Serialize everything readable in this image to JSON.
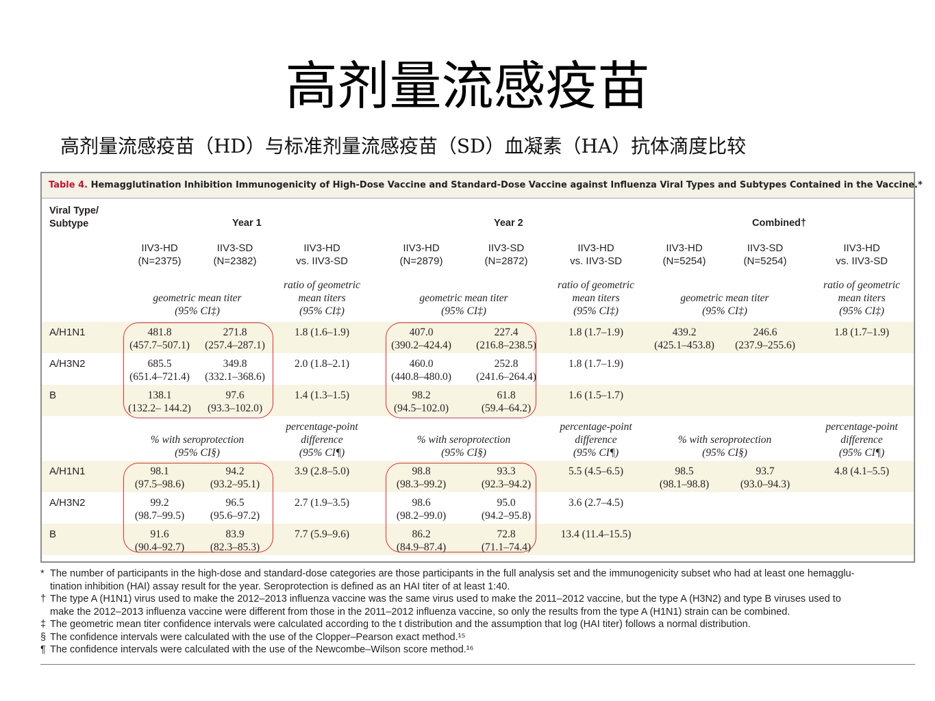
{
  "slide": {
    "title": "高剂量流感疫苗",
    "subtitle": "高剂量流感疫苗（HD）与标准剂量流感疫苗（SD）血凝素（HA）抗体滴度比较"
  },
  "table": {
    "caption_label": "Table 4.",
    "caption_text": " Hemagglutination Inhibition Immunogenicity of High-Dose Vaccine and Standard-Dose Vaccine against Influenza Viral Types and Subtypes Contained in the Vaccine.*",
    "row_header_1": "Viral Type/",
    "row_header_2": "Subtype",
    "periods": [
      "Year 1",
      "Year 2",
      "Combined†"
    ],
    "groups": [
      {
        "hd": "IIV3-HD",
        "hd_n": "(N=2375)",
        "sd": "IIV3-SD",
        "sd_n": "(N=2382)",
        "cmp1": "IIV3-HD",
        "cmp2": "vs. IIV3-SD"
      },
      {
        "hd": "IIV3-HD",
        "hd_n": "(N=2879)",
        "sd": "IIV3-SD",
        "sd_n": "(N=2872)",
        "cmp1": "IIV3-HD",
        "cmp2": "vs. IIV3-SD"
      },
      {
        "hd": "IIV3-HD",
        "hd_n": "(N=5254)",
        "sd": "IIV3-SD",
        "sd_n": "(N=5254)",
        "cmp1": "IIV3-HD",
        "cmp2": "vs. IIV3-SD"
      }
    ],
    "gmt_header": {
      "measure": "geometric mean titer",
      "ci": "(95% CI‡)",
      "ratio_1": "ratio of geometric",
      "ratio_2": "mean titers",
      "ratio_ci": "(95% CI‡)"
    },
    "sero_header": {
      "measure": "% with seroprotection",
      "ci": "(95% CI§)",
      "diff_1": "percentage-point",
      "diff_2": "difference",
      "diff_ci": "(95% CI¶)"
    },
    "gmt_rows": [
      {
        "label": "A/H1N1",
        "y1": {
          "hd": "481.8",
          "hd_ci": "(457.7–507.1)",
          "sd": "271.8",
          "sd_ci": "(257.4–287.1)",
          "ratio": "1.8 (1.6–1.9)"
        },
        "y2": {
          "hd": "407.0",
          "hd_ci": "(390.2–424.4)",
          "sd": "227.4",
          "sd_ci": "(216.8–238.5)",
          "ratio": "1.8 (1.7–1.9)"
        },
        "comb": {
          "hd": "439.2",
          "hd_ci": "(425.1–453.8)",
          "sd": "246.6",
          "sd_ci": "(237.9–255.6)",
          "ratio": "1.8 (1.7–1.9)"
        }
      },
      {
        "label": "A/H3N2",
        "y1": {
          "hd": "685.5",
          "hd_ci": "(651.4–721.4)",
          "sd": "349.8",
          "sd_ci": "(332.1–368.6)",
          "ratio": "2.0 (1.8–2.1)"
        },
        "y2": {
          "hd": "460.0",
          "hd_ci": "(440.8–480.0)",
          "sd": "252.8",
          "sd_ci": "(241.6–264.4)",
          "ratio": "1.8 (1.7–1.9)"
        },
        "comb": {
          "hd": "",
          "hd_ci": "",
          "sd": "",
          "sd_ci": "",
          "ratio": ""
        }
      },
      {
        "label": "B",
        "y1": {
          "hd": "138.1",
          "hd_ci": "(132.2– 144.2)",
          "sd": "97.6",
          "sd_ci": "(93.3–102.0)",
          "ratio": "1.4 (1.3–1.5)"
        },
        "y2": {
          "hd": "98.2",
          "hd_ci": "(94.5–102.0)",
          "sd": "61.8",
          "sd_ci": "(59.4–64.2)",
          "ratio": "1.6 (1.5–1.7)"
        },
        "comb": {
          "hd": "",
          "hd_ci": "",
          "sd": "",
          "sd_ci": "",
          "ratio": ""
        }
      }
    ],
    "sero_rows": [
      {
        "label": "A/H1N1",
        "y1": {
          "hd": "98.1",
          "hd_ci": "(97.5–98.6)",
          "sd": "94.2",
          "sd_ci": "(93.2–95.1)",
          "ratio": "3.9 (2.8–5.0)"
        },
        "y2": {
          "hd": "98.8",
          "hd_ci": "(98.3–99.2)",
          "sd": "93.3",
          "sd_ci": "(92.3–94.2)",
          "ratio": "5.5 (4.5–6.5)"
        },
        "comb": {
          "hd": "98.5",
          "hd_ci": "(98.1–98.8)",
          "sd": "93.7",
          "sd_ci": "(93.0–94.3)",
          "ratio": "4.8 (4.1–5.5)"
        }
      },
      {
        "label": "A/H3N2",
        "y1": {
          "hd": "99.2",
          "hd_ci": "(98.7–99.5)",
          "sd": "96.5",
          "sd_ci": "(95.6–97.2)",
          "ratio": "2.7 (1.9–3.5)"
        },
        "y2": {
          "hd": "98.6",
          "hd_ci": "(98.2–99.0)",
          "sd": "95.0",
          "sd_ci": "(94.2–95.8)",
          "ratio": "3.6 (2.7–4.5)"
        },
        "comb": {
          "hd": "",
          "hd_ci": "",
          "sd": "",
          "sd_ci": "",
          "ratio": ""
        }
      },
      {
        "label": "B",
        "y1": {
          "hd": "91.6",
          "hd_ci": "(90.4–92.7)",
          "sd": "83.9",
          "sd_ci": "(82.3–85.3)",
          "ratio": "7.7 (5.9–9.6)"
        },
        "y2": {
          "hd": "86.2",
          "hd_ci": "(84.9–87.4)",
          "sd": "72.8",
          "sd_ci": "(71.1–74.4)",
          "ratio": "13.4 (11.4–15.5)"
        },
        "comb": {
          "hd": "",
          "hd_ci": "",
          "sd": "",
          "sd_ci": "",
          "ratio": ""
        }
      }
    ]
  },
  "footnotes": [
    {
      "marker": "*",
      "lines": [
        "The number of participants in the high-dose and standard-dose categories are those participants in the full analysis set and the immunogenicity subset who had at least one hemagglu-",
        "tination inhibition (HAI) assay result for the year. Seroprotection is defined as an HAI titer of at least 1:40."
      ]
    },
    {
      "marker": "†",
      "lines": [
        "The type A (H1N1) virus used to make the 2012–2013 influenza vaccine was the same virus used to make the 2011–2012 vaccine, but the type A (H3N2) and type B viruses used to",
        "make the 2012–2013 influenza vaccine were different from those in the 2011–2012 influenza vaccine, so only the results from the type A (H1N1) strain can be combined."
      ]
    },
    {
      "marker": "‡",
      "lines": [
        "The geometric mean titer confidence intervals were calculated according to the t distribution and the assumption that log (HAI titer) follows a normal distribution."
      ]
    },
    {
      "marker": "§",
      "lines": [
        "The confidence intervals were calculated with the use of the Clopper–Pearson exact method.¹⁵"
      ]
    },
    {
      "marker": "¶",
      "lines": [
        "The confidence intervals were calculated with the use of the Newcombe–Wilson score method.¹⁶"
      ]
    }
  ],
  "colors": {
    "highlight_circle": "#e8282b",
    "caption_label": "#c8102e",
    "row_band": "#f8f4e2"
  }
}
